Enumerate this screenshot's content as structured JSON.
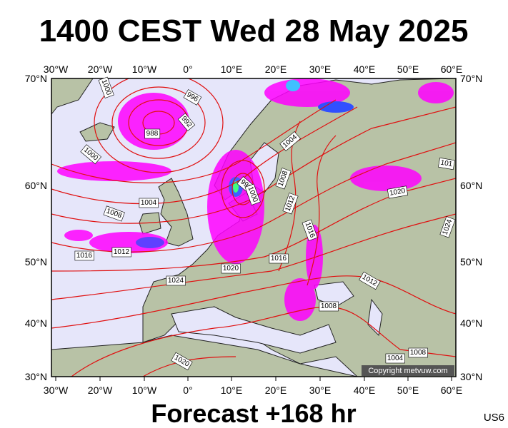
{
  "header": {
    "title": "1400 CEST Wed 28 May 2025"
  },
  "axes": {
    "lon_labels": [
      "30°W",
      "20°W",
      "10°W",
      "0°",
      "10°E",
      "20°E",
      "30°E",
      "40°E",
      "50°E",
      "60°E"
    ],
    "lat_labels": [
      "70°N",
      "60°N",
      "50°N",
      "40°N",
      "30°N"
    ]
  },
  "map": {
    "copyright": "Copyright metvuw.com",
    "isobar_labels": [
      "1000",
      "996",
      "992",
      "988",
      "1000",
      "1004",
      "1008",
      "1012",
      "1016",
      "1024",
      "1020",
      "1016",
      "996",
      "1000",
      "1004",
      "1008",
      "1012",
      "1016",
      "1020",
      "1024",
      "1012",
      "1008",
      "1004",
      "1008",
      "1020",
      "101"
    ]
  },
  "footer": {
    "forecast": "Forecast +168 hr",
    "code": "US6"
  }
}
